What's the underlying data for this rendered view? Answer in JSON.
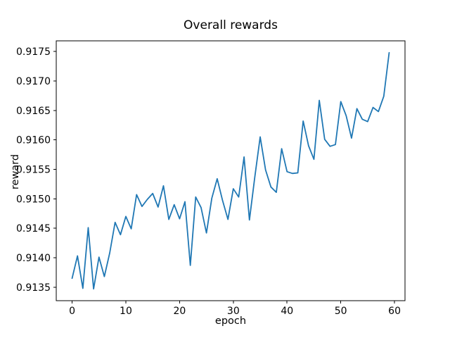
{
  "figure": {
    "title": "Overall rewards",
    "xlabel": "epoch",
    "ylabel": "reward",
    "background_color": "#ffffff",
    "line_color": "#1f77b4",
    "spine_color": "#000000"
  },
  "chart_data": {
    "type": "line",
    "title": "Overall rewards",
    "xlabel": "epoch",
    "ylabel": "reward",
    "legend": "none",
    "grid": false,
    "xlim": [
      -2.95,
      61.95
    ],
    "ylim": [
      0.91327,
      0.917681
    ],
    "xticks": [
      0,
      10,
      20,
      30,
      40,
      50,
      60
    ],
    "yticks": [
      0.9135,
      0.914,
      0.9145,
      0.915,
      0.9155,
      0.916,
      0.9165,
      0.917,
      0.9175
    ],
    "ytick_decimals": 4,
    "x": [
      0,
      1,
      2,
      3,
      4,
      5,
      6,
      7,
      8,
      9,
      10,
      11,
      12,
      13,
      14,
      15,
      16,
      17,
      18,
      19,
      20,
      21,
      22,
      23,
      24,
      25,
      26,
      27,
      28,
      29,
      30,
      31,
      32,
      33,
      34,
      35,
      36,
      37,
      38,
      39,
      40,
      41,
      42,
      43,
      44,
      45,
      46,
      47,
      48,
      49,
      50,
      51,
      52,
      53,
      54,
      55,
      56,
      57,
      58,
      59
    ],
    "series": [
      {
        "name": "reward",
        "color": "#1f77b4",
        "values": [
          0.91365,
          0.91403,
          0.91348,
          0.91451,
          0.91347,
          0.91401,
          0.91368,
          0.91408,
          0.9146,
          0.91439,
          0.9147,
          0.91449,
          0.91507,
          0.91487,
          0.91499,
          0.91509,
          0.91486,
          0.91522,
          0.91465,
          0.9149,
          0.91466,
          0.91495,
          0.91387,
          0.91503,
          0.91485,
          0.91442,
          0.91501,
          0.91534,
          0.91497,
          0.91465,
          0.91517,
          0.91503,
          0.91571,
          0.91464,
          0.91537,
          0.91605,
          0.91549,
          0.9152,
          0.91511,
          0.91585,
          0.91546,
          0.91543,
          0.91544,
          0.91632,
          0.9159,
          0.91567,
          0.91667,
          0.91601,
          0.91589,
          0.91592,
          0.91665,
          0.91641,
          0.91603,
          0.91653,
          0.91635,
          0.91631,
          0.91655,
          0.91648,
          0.91674,
          0.91748
        ]
      }
    ]
  }
}
